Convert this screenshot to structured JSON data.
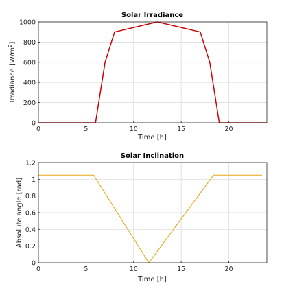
{
  "chart_data": [
    {
      "type": "line",
      "title": "Solar Irradiance",
      "xlabel": "Time [h]",
      "ylabel_main": "Irradiance [W/m",
      "ylabel_sup": "2",
      "ylabel_end": "]",
      "xlim": [
        0,
        24
      ],
      "ylim": [
        0,
        1000
      ],
      "grid": true,
      "xticks": [
        0,
        5,
        10,
        15,
        20
      ],
      "yticks": [
        0,
        200,
        400,
        600,
        800,
        1000
      ],
      "color": "#cc0000",
      "series": [
        {
          "x": [
            0,
            6,
            7,
            8,
            12.5,
            17,
            18,
            19,
            24
          ],
          "y": [
            0,
            0,
            600,
            900,
            1000,
            900,
            600,
            0,
            0
          ]
        }
      ]
    },
    {
      "type": "line",
      "title": "Solar Inclination",
      "xlabel": "Time [h]",
      "ylabel": "Absolute angle [rad]",
      "xlim": [
        0,
        24
      ],
      "ylim": [
        0,
        1.2
      ],
      "grid": true,
      "xticks": [
        0,
        5,
        10,
        15,
        20
      ],
      "yticks": [
        0,
        0.2,
        0.4,
        0.6,
        0.8,
        1,
        1.2
      ],
      "color": "#e6a817",
      "series": [
        {
          "x": [
            0,
            5.8,
            11.6,
            18.4,
            23.5
          ],
          "y": [
            1.05,
            1.05,
            0,
            1.05,
            1.05
          ]
        }
      ]
    }
  ]
}
